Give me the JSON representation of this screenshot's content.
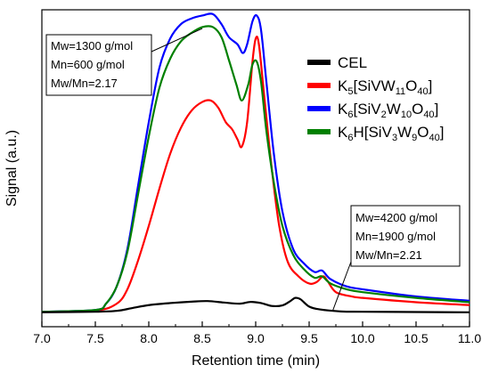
{
  "chart_data": {
    "type": "line",
    "xlabel": "Retention time (min)",
    "ylabel": "Signal (a.u.)",
    "xlim": [
      7.0,
      11.0
    ],
    "ylim": [
      -0.05,
      1.05
    ],
    "x_ticks": [
      "7.0",
      "7.5",
      "8.0",
      "8.5",
      "9.0",
      "9.5",
      "10.0",
      "10.5",
      "11.0"
    ],
    "legend_position": "right",
    "grid": false,
    "series": [
      {
        "name": "CEL",
        "color": "#000000",
        "legend": {
          "base": "CEL",
          "parts": []
        },
        "points": [
          [
            7.0,
            0.0
          ],
          [
            7.5,
            0.002
          ],
          [
            7.7,
            0.005
          ],
          [
            7.85,
            0.015
          ],
          [
            8.0,
            0.025
          ],
          [
            8.2,
            0.032
          ],
          [
            8.4,
            0.037
          ],
          [
            8.55,
            0.039
          ],
          [
            8.7,
            0.034
          ],
          [
            8.85,
            0.03
          ],
          [
            8.95,
            0.036
          ],
          [
            9.05,
            0.032
          ],
          [
            9.15,
            0.022
          ],
          [
            9.25,
            0.024
          ],
          [
            9.32,
            0.038
          ],
          [
            9.37,
            0.05
          ],
          [
            9.42,
            0.045
          ],
          [
            9.5,
            0.02
          ],
          [
            9.6,
            0.01
          ],
          [
            9.8,
            0.003
          ],
          [
            10.0,
            0.002
          ],
          [
            10.5,
            0.001
          ],
          [
            11.0,
            0.0
          ]
        ]
      },
      {
        "name": "K5[SiVW11O40]",
        "color": "#ff0000",
        "legend": {
          "base": "K",
          "parts": [
            [
              "5",
              "sub"
            ],
            [
              "[SiVW",
              "n"
            ],
            [
              "11",
              "sub"
            ],
            [
              "O",
              "n"
            ],
            [
              "40",
              "sub"
            ],
            [
              "]",
              "n"
            ]
          ]
        },
        "points": [
          [
            7.0,
            0.002
          ],
          [
            7.5,
            0.006
          ],
          [
            7.7,
            0.03
          ],
          [
            7.8,
            0.08
          ],
          [
            7.9,
            0.18
          ],
          [
            8.0,
            0.3
          ],
          [
            8.1,
            0.43
          ],
          [
            8.2,
            0.55
          ],
          [
            8.3,
            0.64
          ],
          [
            8.4,
            0.7
          ],
          [
            8.5,
            0.73
          ],
          [
            8.58,
            0.735
          ],
          [
            8.65,
            0.71
          ],
          [
            8.72,
            0.66
          ],
          [
            8.78,
            0.635
          ],
          [
            8.83,
            0.6
          ],
          [
            8.87,
            0.575
          ],
          [
            8.92,
            0.66
          ],
          [
            8.97,
            0.87
          ],
          [
            9.0,
            0.95
          ],
          [
            9.03,
            0.93
          ],
          [
            9.08,
            0.75
          ],
          [
            9.15,
            0.5
          ],
          [
            9.22,
            0.3
          ],
          [
            9.3,
            0.175
          ],
          [
            9.4,
            0.125
          ],
          [
            9.5,
            0.1
          ],
          [
            9.57,
            0.105
          ],
          [
            9.63,
            0.125
          ],
          [
            9.67,
            0.11
          ],
          [
            9.75,
            0.07
          ],
          [
            9.9,
            0.055
          ],
          [
            10.0,
            0.05
          ],
          [
            10.5,
            0.035
          ],
          [
            11.0,
            0.025
          ]
        ]
      },
      {
        "name": "K6[SiV2W10O40]",
        "color": "#0000ff",
        "legend": {
          "base": "K",
          "parts": [
            [
              "6",
              "sub"
            ],
            [
              "[SiV",
              "n"
            ],
            [
              "2",
              "sub"
            ],
            [
              "W",
              "n"
            ],
            [
              "10",
              "sub"
            ],
            [
              "O",
              "n"
            ],
            [
              "40",
              "sub"
            ],
            [
              "]",
              "n"
            ]
          ]
        },
        "points": [
          [
            7.0,
            0.002
          ],
          [
            7.5,
            0.008
          ],
          [
            7.6,
            0.03
          ],
          [
            7.7,
            0.09
          ],
          [
            7.8,
            0.22
          ],
          [
            7.9,
            0.44
          ],
          [
            8.0,
            0.66
          ],
          [
            8.1,
            0.85
          ],
          [
            8.2,
            0.95
          ],
          [
            8.3,
            1.0
          ],
          [
            8.4,
            1.02
          ],
          [
            8.5,
            1.03
          ],
          [
            8.6,
            1.035
          ],
          [
            8.68,
            1.0
          ],
          [
            8.75,
            0.955
          ],
          [
            8.83,
            0.93
          ],
          [
            8.88,
            0.9
          ],
          [
            8.92,
            0.93
          ],
          [
            8.97,
            1.01
          ],
          [
            9.01,
            1.03
          ],
          [
            9.05,
            0.98
          ],
          [
            9.1,
            0.8
          ],
          [
            9.17,
            0.55
          ],
          [
            9.25,
            0.35
          ],
          [
            9.35,
            0.22
          ],
          [
            9.45,
            0.17
          ],
          [
            9.55,
            0.14
          ],
          [
            9.62,
            0.145
          ],
          [
            9.7,
            0.115
          ],
          [
            9.85,
            0.09
          ],
          [
            10.0,
            0.08
          ],
          [
            10.5,
            0.055
          ],
          [
            11.0,
            0.04
          ]
        ]
      },
      {
        "name": "K6H[SiV3W9O40]",
        "color": "#008000",
        "legend": {
          "base": "K",
          "parts": [
            [
              "6",
              "sub"
            ],
            [
              "H[SiV",
              "n"
            ],
            [
              "3",
              "sub"
            ],
            [
              "W",
              "n"
            ],
            [
              "9",
              "sub"
            ],
            [
              "O",
              "n"
            ],
            [
              "40",
              "sub"
            ],
            [
              "]",
              "n"
            ]
          ]
        },
        "points": [
          [
            7.0,
            0.002
          ],
          [
            7.5,
            0.008
          ],
          [
            7.6,
            0.03
          ],
          [
            7.7,
            0.09
          ],
          [
            7.8,
            0.21
          ],
          [
            7.9,
            0.41
          ],
          [
            8.0,
            0.61
          ],
          [
            8.1,
            0.78
          ],
          [
            8.2,
            0.88
          ],
          [
            8.3,
            0.94
          ],
          [
            8.4,
            0.97
          ],
          [
            8.5,
            0.99
          ],
          [
            8.6,
            0.99
          ],
          [
            8.68,
            0.955
          ],
          [
            8.75,
            0.875
          ],
          [
            8.82,
            0.79
          ],
          [
            8.87,
            0.735
          ],
          [
            8.93,
            0.79
          ],
          [
            8.97,
            0.86
          ],
          [
            9.01,
            0.87
          ],
          [
            9.05,
            0.8
          ],
          [
            9.1,
            0.63
          ],
          [
            9.17,
            0.45
          ],
          [
            9.25,
            0.3
          ],
          [
            9.35,
            0.2
          ],
          [
            9.45,
            0.15
          ],
          [
            9.55,
            0.12
          ],
          [
            9.62,
            0.125
          ],
          [
            9.7,
            0.1
          ],
          [
            9.85,
            0.08
          ],
          [
            10.0,
            0.07
          ],
          [
            10.5,
            0.05
          ],
          [
            11.0,
            0.035
          ]
        ]
      }
    ],
    "annotations": [
      {
        "lines": [
          "Mw=1300 g/mol",
          "Mn=600 g/mol",
          "Mw/Mn=2.17"
        ],
        "pointer": [
          8.5,
          0.985
        ]
      },
      {
        "lines": [
          "Mw=4200 g/mol",
          "Mn=1900 g/mol",
          "Mw/Mn=2.21"
        ],
        "pointer": [
          9.72,
          0.005
        ]
      }
    ]
  }
}
